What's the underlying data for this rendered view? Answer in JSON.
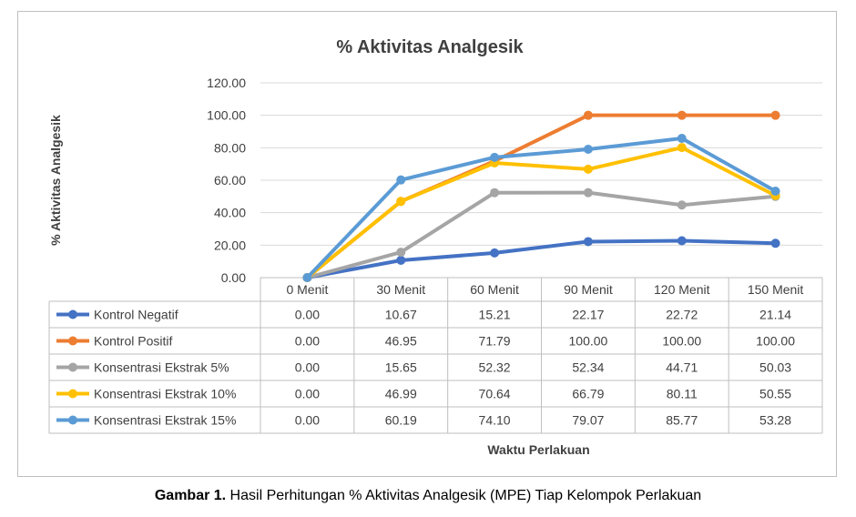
{
  "chart_data": {
    "type": "line",
    "title": "% Aktivitas Analgesik",
    "xlabel": "Waktu Perlakuan",
    "ylabel": "% Aktivitas Analgesik",
    "ylim": [
      0,
      120
    ],
    "yticks": [
      "0.00",
      "20.00",
      "40.00",
      "60.00",
      "80.00",
      "100.00",
      "120.00"
    ],
    "grid": true,
    "legend": "data-table",
    "categories": [
      "0 Menit",
      "30 Menit",
      "60 Menit",
      "90 Menit",
      "120 Menit",
      "150 Menit"
    ],
    "series": [
      {
        "name": "Kontrol Negatif",
        "color": "#4472c4",
        "values": [
          0.0,
          10.67,
          15.21,
          22.17,
          22.72,
          21.14
        ],
        "labels": [
          "0.00",
          "10.67",
          "15.21",
          "22.17",
          "22.72",
          "21.14"
        ]
      },
      {
        "name": "Kontrol Positif",
        "color": "#ed7d31",
        "values": [
          0.0,
          46.95,
          71.79,
          100.0,
          100.0,
          100.0
        ],
        "labels": [
          "0.00",
          "46.95",
          "71.79",
          "100.00",
          "100.00",
          "100.00"
        ]
      },
      {
        "name": "Konsentrasi Ekstrak 5%",
        "color": "#a5a5a5",
        "values": [
          0.0,
          15.65,
          52.32,
          52.34,
          44.71,
          50.03
        ],
        "labels": [
          "0.00",
          "15.65",
          "52.32",
          "52.34",
          "44.71",
          "50.03"
        ]
      },
      {
        "name": "Konsentrasi Ekstrak 10%",
        "color": "#ffc000",
        "values": [
          0.0,
          46.99,
          70.64,
          66.79,
          80.11,
          50.55
        ],
        "labels": [
          "0.00",
          "46.99",
          "70.64",
          "66.79",
          "80.11",
          "50.55"
        ]
      },
      {
        "name": "Konsentrasi Ekstrak 15%",
        "color": "#5b9bd5",
        "values": [
          0.0,
          60.19,
          74.1,
          79.07,
          85.77,
          53.28
        ],
        "labels": [
          "0.00",
          "60.19",
          "74.10",
          "79.07",
          "85.77",
          "53.28"
        ]
      }
    ]
  },
  "caption": {
    "label": "Gambar 1.",
    "text": " Hasil Perhitungan % Aktivitas Analgesik (MPE) Tiap Kelompok Perlakuan"
  }
}
